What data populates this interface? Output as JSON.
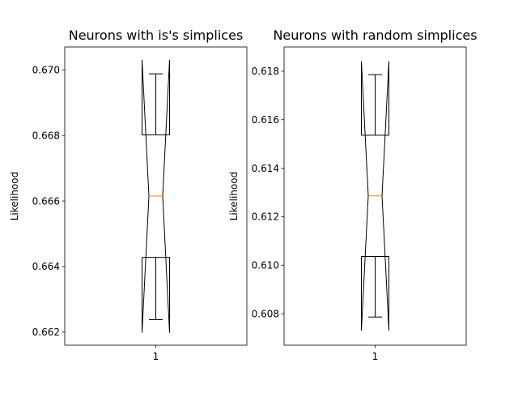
{
  "chart_data": [
    {
      "type": "boxplot",
      "notched": true,
      "title": "Neurons with is's simplices",
      "xlabel": "",
      "ylabel": "Likelihood",
      "categories": [
        "1"
      ],
      "ylim": [
        0.6616,
        0.6707
      ],
      "yticks": [
        0.662,
        0.664,
        0.666,
        0.668,
        0.67
      ],
      "ytick_labels": [
        "0.662",
        "0.664",
        "0.666",
        "0.668",
        "0.670"
      ],
      "box": {
        "whisker_low": 0.66238,
        "q1": 0.66428,
        "median": 0.66615,
        "q3": 0.66802,
        "whisker_high": 0.66988,
        "notch_low": 0.66198,
        "notch_high": 0.67031
      },
      "colors": {
        "box": "#000000",
        "median": "#ff7f0e"
      },
      "grid": false
    },
    {
      "type": "boxplot",
      "notched": true,
      "title": "Neurons with random simplices",
      "xlabel": "",
      "ylabel": "Likelihood",
      "categories": [
        "1"
      ],
      "ylim": [
        0.6067,
        0.619
      ],
      "yticks": [
        0.608,
        0.61,
        0.612,
        0.614,
        0.616,
        0.618
      ],
      "ytick_labels": [
        "0.608",
        "0.610",
        "0.612",
        "0.614",
        "0.616",
        "0.618"
      ],
      "box": {
        "whisker_low": 0.60786,
        "q1": 0.61036,
        "median": 0.61286,
        "q3": 0.61536,
        "whisker_high": 0.61786,
        "notch_low": 0.60731,
        "notch_high": 0.61841
      },
      "colors": {
        "box": "#000000",
        "median": "#ff7f0e"
      },
      "grid": false
    }
  ]
}
